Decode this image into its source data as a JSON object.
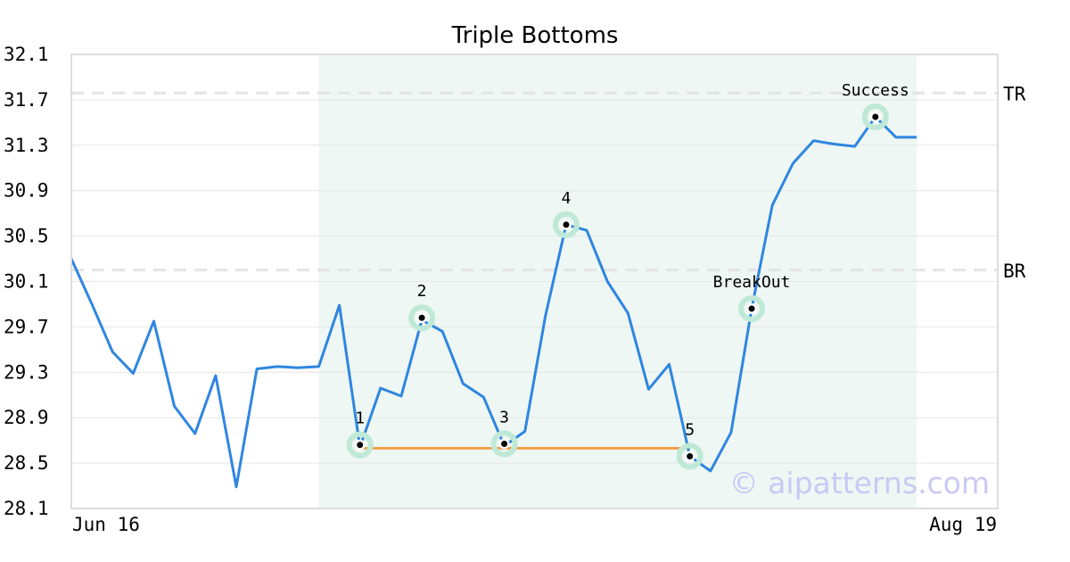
{
  "chart_data": {
    "type": "line",
    "title": "Triple Bottoms",
    "xlabel": "",
    "ylabel": "",
    "ylim": [
      28.1,
      32.1
    ],
    "y_ticks": [
      "28.1",
      "28.5",
      "28.9",
      "29.3",
      "29.7",
      "30.1",
      "30.5",
      "30.9",
      "31.3",
      "31.7",
      "32.1"
    ],
    "x_tick_labels": [
      "Jun 16",
      "Aug 19"
    ],
    "grid": true,
    "series": [
      {
        "color": "#2f86e0",
        "values": [
          30.3,
          29.9,
          29.48,
          29.29,
          29.75,
          29.0,
          28.76,
          29.27,
          28.29,
          29.33,
          29.35,
          29.34,
          29.35,
          29.89,
          28.64,
          29.16,
          29.09,
          29.76,
          29.66,
          29.2,
          29.08,
          28.65,
          28.78,
          29.8,
          30.6,
          30.55,
          30.1,
          29.82,
          29.15,
          29.37,
          28.56,
          28.43,
          28.77,
          29.86,
          30.77,
          31.14,
          31.34,
          31.31,
          31.29,
          31.55,
          31.37,
          31.37
        ]
      }
    ],
    "shaded_region": {
      "from_index": 12,
      "to_index": 41,
      "color": "#eef7f3"
    },
    "reference_lines": [
      {
        "label": "TR",
        "value": 31.76,
        "color": "#e4e4e4"
      },
      {
        "label": "BR",
        "value": 30.2,
        "color": "#e4e4e4"
      }
    ],
    "support_line": {
      "from_index": 14,
      "to_index": 30,
      "value": 28.63,
      "color": "#f3a04a"
    },
    "points": [
      {
        "label": "1",
        "index": 14,
        "value": 28.66,
        "label_pos": "above"
      },
      {
        "label": "2",
        "index": 17,
        "value": 29.78,
        "label_pos": "above"
      },
      {
        "label": "3",
        "index": 21,
        "value": 28.67,
        "label_pos": "above"
      },
      {
        "label": "4",
        "index": 24,
        "value": 30.6,
        "label_pos": "above"
      },
      {
        "label": "5",
        "index": 30,
        "value": 28.56,
        "label_pos": "above"
      },
      {
        "label": "BreakOut",
        "index": 33,
        "value": 29.86,
        "label_pos": "above"
      },
      {
        "label": "Success",
        "index": 39,
        "value": 31.55,
        "label_pos": "above"
      }
    ],
    "point_halo_color": "#bfe9d6",
    "watermark": "© aipatterns.com"
  }
}
